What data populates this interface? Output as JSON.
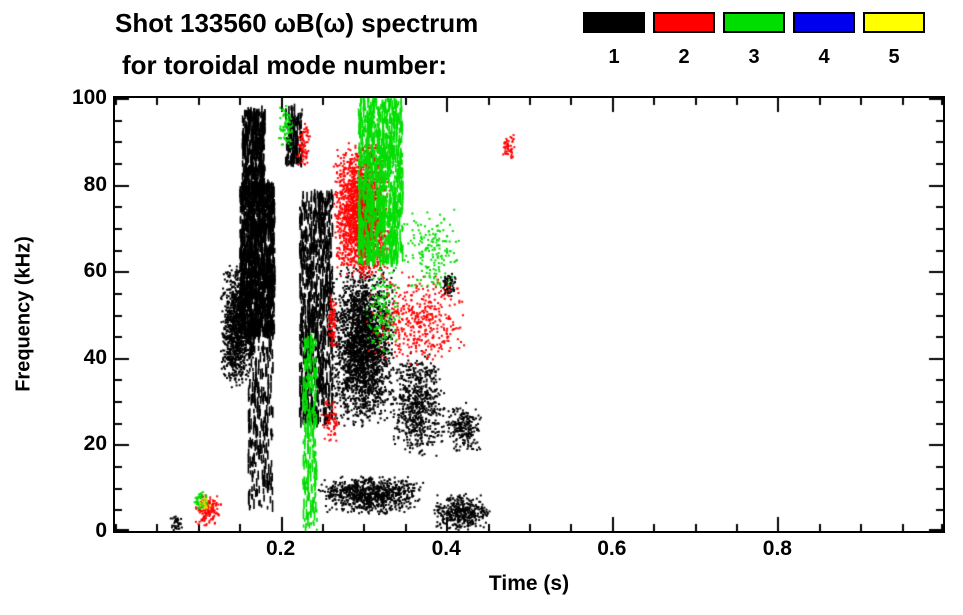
{
  "title": {
    "line1": "Shot 133560 ωB(ω) spectrum",
    "line2": "for toroidal mode number:"
  },
  "legend": {
    "items": [
      {
        "label": "1",
        "color": "#000000"
      },
      {
        "label": "2",
        "color": "#ff0000"
      },
      {
        "label": "3",
        "color": "#00dd00"
      },
      {
        "label": "4",
        "color": "#0000ee"
      },
      {
        "label": "5",
        "color": "#ffff00"
      }
    ]
  },
  "axes": {
    "x": {
      "label": "Time (s)",
      "min": 0,
      "max": 1.0,
      "minor_step": 0.05,
      "major_ticks": [
        {
          "v": 0.2,
          "label": "0.2"
        },
        {
          "v": 0.4,
          "label": "0.4"
        },
        {
          "v": 0.6,
          "label": "0.6"
        },
        {
          "v": 0.8,
          "label": "0.8"
        }
      ]
    },
    "y": {
      "label": "Frequency (kHz)",
      "min": 0,
      "max": 100,
      "minor_step": 5,
      "major_ticks": [
        {
          "v": 0,
          "label": "0"
        },
        {
          "v": 20,
          "label": "20"
        },
        {
          "v": 40,
          "label": "40"
        },
        {
          "v": 60,
          "label": "60"
        },
        {
          "v": 80,
          "label": "80"
        },
        {
          "v": 100,
          "label": "100"
        }
      ]
    }
  },
  "chart_data": {
    "type": "scatter",
    "title": "Shot 133560 ωB(ω) spectrum for toroidal mode numbers 1-5",
    "xlabel": "Time (s)",
    "ylabel": "Frequency (kHz)",
    "xlim": [
      0,
      1.0
    ],
    "ylim": [
      0,
      100
    ],
    "legend_position": "top-right",
    "grid": false,
    "legend": [
      {
        "mode_number": 1,
        "color": "#000000"
      },
      {
        "mode_number": 2,
        "color": "#ff0000"
      },
      {
        "mode_number": 3,
        "color": "#00dd00"
      },
      {
        "mode_number": 4,
        "color": "#0000ee"
      },
      {
        "mode_number": 5,
        "color": "#ffff00"
      }
    ],
    "clusters": [
      {
        "mode_number": 1,
        "color": "#000000",
        "t": [
          0.15,
          0.192
        ],
        "f": [
          45,
          80
        ],
        "n": 1400,
        "style": "vstreak"
      },
      {
        "mode_number": 1,
        "color": "#000000",
        "t": [
          0.153,
          0.18
        ],
        "f": [
          78,
          97
        ],
        "n": 450,
        "style": "vstreak"
      },
      {
        "mode_number": 1,
        "color": "#000000",
        "t": [
          0.126,
          0.168
        ],
        "f": [
          33,
          62
        ],
        "n": 1100,
        "style": "dot"
      },
      {
        "mode_number": 1,
        "color": "#000000",
        "t": [
          0.16,
          0.19
        ],
        "f": [
          5,
          45
        ],
        "n": 260,
        "style": "vstreak"
      },
      {
        "mode_number": 1,
        "color": "#000000",
        "t": [
          0.205,
          0.225
        ],
        "f": [
          85,
          98
        ],
        "n": 120,
        "style": "vstreak"
      },
      {
        "mode_number": 1,
        "color": "#000000",
        "t": [
          0.222,
          0.262
        ],
        "f": [
          25,
          78
        ],
        "n": 820,
        "style": "vstreak"
      },
      {
        "mode_number": 1,
        "color": "#000000",
        "t": [
          0.258,
          0.338
        ],
        "f": [
          24,
          62
        ],
        "n": 2400,
        "style": "dot"
      },
      {
        "mode_number": 1,
        "color": "#000000",
        "t": [
          0.33,
          0.4
        ],
        "f": [
          17,
          42
        ],
        "n": 650,
        "style": "dot"
      },
      {
        "mode_number": 1,
        "color": "#000000",
        "t": [
          0.243,
          0.372
        ],
        "f": [
          4,
          13
        ],
        "n": 820,
        "style": "dot"
      },
      {
        "mode_number": 1,
        "color": "#000000",
        "t": [
          0.383,
          0.452
        ],
        "f": [
          0,
          9
        ],
        "n": 380,
        "style": "dot"
      },
      {
        "mode_number": 1,
        "color": "#000000",
        "t": [
          0.398,
          0.442
        ],
        "f": [
          18,
          30
        ],
        "n": 220,
        "style": "dot"
      },
      {
        "mode_number": 1,
        "color": "#000000",
        "t": [
          0.393,
          0.412
        ],
        "f": [
          54,
          60
        ],
        "n": 70,
        "style": "dot"
      },
      {
        "mode_number": 1,
        "color": "#000000",
        "t": [
          0.063,
          0.082
        ],
        "f": [
          0,
          4
        ],
        "n": 35,
        "style": "dot"
      },
      {
        "mode_number": 2,
        "color": "#ff0000",
        "t": [
          0.262,
          0.332
        ],
        "f": [
          58,
          90
        ],
        "n": 2000,
        "style": "dot"
      },
      {
        "mode_number": 2,
        "color": "#ff0000",
        "t": [
          0.3,
          0.43
        ],
        "f": [
          38,
          60
        ],
        "n": 420,
        "style": "dot"
      },
      {
        "mode_number": 2,
        "color": "#ff0000",
        "t": [
          0.095,
          0.128
        ],
        "f": [
          1,
          9
        ],
        "n": 140,
        "style": "dot"
      },
      {
        "mode_number": 2,
        "color": "#ff0000",
        "t": [
          0.248,
          0.272
        ],
        "f": [
          20,
          31
        ],
        "n": 60,
        "style": "dot"
      },
      {
        "mode_number": 2,
        "color": "#ff0000",
        "t": [
          0.465,
          0.482
        ],
        "f": [
          86,
          92
        ],
        "n": 50,
        "style": "dot"
      },
      {
        "mode_number": 2,
        "color": "#ff0000",
        "t": [
          0.218,
          0.235
        ],
        "f": [
          83,
          95
        ],
        "n": 70,
        "style": "dot"
      },
      {
        "mode_number": 2,
        "color": "#ff0000",
        "t": [
          0.255,
          0.268
        ],
        "f": [
          42,
          55
        ],
        "n": 80,
        "style": "dot"
      },
      {
        "mode_number": 3,
        "color": "#00dd00",
        "t": [
          0.293,
          0.347
        ],
        "f": [
          62,
          100
        ],
        "n": 950,
        "style": "vstreak"
      },
      {
        "mode_number": 3,
        "color": "#00dd00",
        "t": [
          0.226,
          0.243
        ],
        "f": [
          0,
          45
        ],
        "n": 220,
        "style": "vstreak"
      },
      {
        "mode_number": 3,
        "color": "#00dd00",
        "t": [
          0.345,
          0.42
        ],
        "f": [
          55,
          75
        ],
        "n": 170,
        "style": "dot"
      },
      {
        "mode_number": 3,
        "color": "#00dd00",
        "t": [
          0.093,
          0.112
        ],
        "f": [
          5,
          10
        ],
        "n": 50,
        "style": "dot"
      },
      {
        "mode_number": 3,
        "color": "#00dd00",
        "t": [
          0.196,
          0.214
        ],
        "f": [
          88,
          99
        ],
        "n": 70,
        "style": "dot"
      },
      {
        "mode_number": 3,
        "color": "#00dd00",
        "t": [
          0.3,
          0.345
        ],
        "f": [
          40,
          62
        ],
        "n": 150,
        "style": "dot"
      },
      {
        "mode_number": 5,
        "color": "#dddd00",
        "t": [
          0.1,
          0.115
        ],
        "f": [
          5,
          8
        ],
        "n": 18,
        "style": "dot"
      }
    ]
  }
}
